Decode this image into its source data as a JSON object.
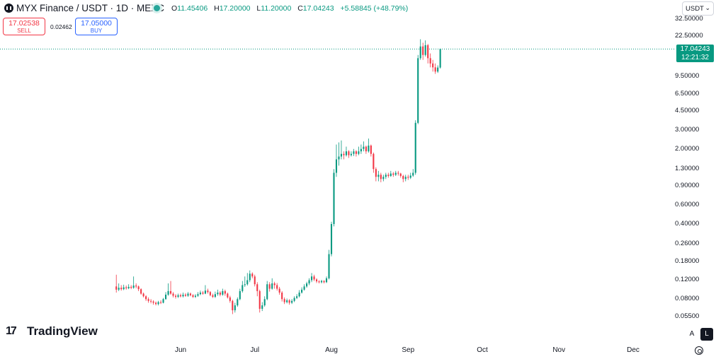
{
  "header": {
    "symbol_title": "MYX Finance / USDT · 1D · MEXC",
    "ohlc": {
      "o_key": "O",
      "o_val": "11.45406",
      "h_key": "H",
      "h_val": "17.20000",
      "l_key": "L",
      "l_val": "11.20000",
      "c_key": "C",
      "c_val": "17.04243",
      "change": "+5.58845 (+48.79%)"
    }
  },
  "trade": {
    "sell_price": "17.02538",
    "sell_label": "SELL",
    "spread": "0.02462",
    "buy_price": "17.05000",
    "buy_label": "BUY"
  },
  "currency": {
    "label": "USDT",
    "chevron": "⌄"
  },
  "price_tag": {
    "price": "17.04243",
    "countdown": "12:21:32"
  },
  "branding": {
    "logo_text": "TradingView"
  },
  "controls": {
    "auto_label": "A",
    "log_label": "L"
  },
  "colors": {
    "up": "#089981",
    "down": "#f23645",
    "tag": "#089981"
  },
  "chart_data": {
    "type": "candlestick",
    "scale": "log",
    "y_ticks": [
      {
        "value": 32.5,
        "label": "32.50000"
      },
      {
        "value": 22.5,
        "label": "22.50000"
      },
      {
        "value": 9.5,
        "label": "9.50000"
      },
      {
        "value": 6.5,
        "label": "6.50000"
      },
      {
        "value": 4.5,
        "label": "4.50000"
      },
      {
        "value": 3.0,
        "label": "3.00000"
      },
      {
        "value": 2.0,
        "label": "2.00000"
      },
      {
        "value": 1.3,
        "label": "1.30000"
      },
      {
        "value": 0.9,
        "label": "0.90000"
      },
      {
        "value": 0.6,
        "label": "0.60000"
      },
      {
        "value": 0.4,
        "label": "0.40000"
      },
      {
        "value": 0.26,
        "label": "0.26000"
      },
      {
        "value": 0.18,
        "label": "0.18000"
      },
      {
        "value": 0.12,
        "label": "0.12000"
      },
      {
        "value": 0.08,
        "label": "0.08000"
      },
      {
        "value": 0.055,
        "label": "0.05500"
      }
    ],
    "x_ticks": [
      {
        "date": "2025-06-01",
        "label": "Jun"
      },
      {
        "date": "2025-07-01",
        "label": "Jul"
      },
      {
        "date": "2025-08-01",
        "label": "Aug"
      },
      {
        "date": "2025-09-01",
        "label": "Sep"
      },
      {
        "date": "2025-10-01",
        "label": "Oct"
      },
      {
        "date": "2025-11-01",
        "label": "Nov"
      },
      {
        "date": "2025-12-01",
        "label": "Dec"
      }
    ],
    "last_price": 17.04243,
    "candles": [
      [
        "2025-05-06",
        0.105,
        0.098,
        0.135,
        0.092
      ],
      [
        "2025-05-07",
        0.098,
        0.102,
        0.112,
        0.095
      ],
      [
        "2025-05-08",
        0.102,
        0.099,
        0.108,
        0.096
      ],
      [
        "2025-05-09",
        0.099,
        0.103,
        0.109,
        0.097
      ],
      [
        "2025-05-10",
        0.103,
        0.101,
        0.107,
        0.098
      ],
      [
        "2025-05-11",
        0.101,
        0.104,
        0.11,
        0.099
      ],
      [
        "2025-05-12",
        0.104,
        0.102,
        0.108,
        0.099
      ],
      [
        "2025-05-13",
        0.102,
        0.107,
        0.13,
        0.1
      ],
      [
        "2025-05-14",
        0.107,
        0.105,
        0.112,
        0.101
      ],
      [
        "2025-05-15",
        0.105,
        0.099,
        0.107,
        0.095
      ],
      [
        "2025-05-16",
        0.099,
        0.09,
        0.101,
        0.088
      ],
      [
        "2025-05-17",
        0.09,
        0.085,
        0.092,
        0.083
      ],
      [
        "2025-05-18",
        0.085,
        0.08,
        0.087,
        0.077
      ],
      [
        "2025-05-19",
        0.08,
        0.077,
        0.083,
        0.074
      ],
      [
        "2025-05-20",
        0.077,
        0.076,
        0.08,
        0.073
      ],
      [
        "2025-05-21",
        0.076,
        0.074,
        0.078,
        0.071
      ],
      [
        "2025-05-22",
        0.074,
        0.072,
        0.076,
        0.07
      ],
      [
        "2025-05-23",
        0.072,
        0.075,
        0.077,
        0.07
      ],
      [
        "2025-05-24",
        0.075,
        0.074,
        0.078,
        0.072
      ],
      [
        "2025-05-25",
        0.074,
        0.08,
        0.082,
        0.073
      ],
      [
        "2025-05-26",
        0.08,
        0.088,
        0.093,
        0.079
      ],
      [
        "2025-05-27",
        0.088,
        0.095,
        0.112,
        0.086
      ],
      [
        "2025-05-28",
        0.095,
        0.09,
        0.118,
        0.088
      ],
      [
        "2025-05-29",
        0.09,
        0.086,
        0.093,
        0.083
      ],
      [
        "2025-05-30",
        0.086,
        0.084,
        0.089,
        0.081
      ],
      [
        "2025-05-31",
        0.084,
        0.087,
        0.09,
        0.082
      ],
      [
        "2025-06-01",
        0.087,
        0.085,
        0.09,
        0.083
      ],
      [
        "2025-06-02",
        0.085,
        0.088,
        0.092,
        0.083
      ],
      [
        "2025-06-03",
        0.088,
        0.086,
        0.091,
        0.084
      ],
      [
        "2025-06-04",
        0.086,
        0.09,
        0.093,
        0.084
      ],
      [
        "2025-06-05",
        0.09,
        0.087,
        0.092,
        0.085
      ],
      [
        "2025-06-06",
        0.087,
        0.084,
        0.089,
        0.082
      ],
      [
        "2025-06-07",
        0.084,
        0.086,
        0.089,
        0.082
      ],
      [
        "2025-06-08",
        0.086,
        0.089,
        0.093,
        0.084
      ],
      [
        "2025-06-09",
        0.089,
        0.092,
        0.096,
        0.087
      ],
      [
        "2025-06-10",
        0.092,
        0.09,
        0.095,
        0.088
      ],
      [
        "2025-06-11",
        0.09,
        0.096,
        0.108,
        0.089
      ],
      [
        "2025-06-12",
        0.096,
        0.093,
        0.1,
        0.09
      ],
      [
        "2025-06-13",
        0.093,
        0.087,
        0.095,
        0.085
      ],
      [
        "2025-06-14",
        0.087,
        0.084,
        0.09,
        0.082
      ],
      [
        "2025-06-15",
        0.084,
        0.089,
        0.094,
        0.082
      ],
      [
        "2025-06-16",
        0.089,
        0.092,
        0.098,
        0.086
      ],
      [
        "2025-06-17",
        0.092,
        0.088,
        0.095,
        0.085
      ],
      [
        "2025-06-18",
        0.088,
        0.095,
        0.1,
        0.086
      ],
      [
        "2025-06-19",
        0.095,
        0.09,
        0.098,
        0.086
      ],
      [
        "2025-06-20",
        0.09,
        0.083,
        0.092,
        0.081
      ],
      [
        "2025-06-21",
        0.083,
        0.077,
        0.086,
        0.074
      ],
      [
        "2025-06-22",
        0.077,
        0.063,
        0.079,
        0.058
      ],
      [
        "2025-06-23",
        0.063,
        0.07,
        0.074,
        0.06
      ],
      [
        "2025-06-24",
        0.07,
        0.08,
        0.083,
        0.068
      ],
      [
        "2025-06-25",
        0.08,
        0.095,
        0.1,
        0.078
      ],
      [
        "2025-06-26",
        0.095,
        0.108,
        0.118,
        0.092
      ],
      [
        "2025-06-27",
        0.108,
        0.11,
        0.13,
        0.104
      ],
      [
        "2025-06-28",
        0.11,
        0.12,
        0.14,
        0.107
      ],
      [
        "2025-06-29",
        0.12,
        0.138,
        0.148,
        0.115
      ],
      [
        "2025-06-30",
        0.138,
        0.13,
        0.142,
        0.125
      ],
      [
        "2025-07-01",
        0.13,
        0.11,
        0.135,
        0.105
      ],
      [
        "2025-07-02",
        0.11,
        0.095,
        0.115,
        0.085
      ],
      [
        "2025-07-03",
        0.095,
        0.065,
        0.098,
        0.06
      ],
      [
        "2025-07-04",
        0.065,
        0.07,
        0.075,
        0.062
      ],
      [
        "2025-07-05",
        0.07,
        0.08,
        0.085,
        0.068
      ],
      [
        "2025-07-06",
        0.08,
        0.11,
        0.118,
        0.078
      ],
      [
        "2025-07-07",
        0.11,
        0.1,
        0.115,
        0.094
      ],
      [
        "2025-07-08",
        0.1,
        0.112,
        0.125,
        0.098
      ],
      [
        "2025-07-09",
        0.112,
        0.108,
        0.116,
        0.1
      ],
      [
        "2025-07-10",
        0.108,
        0.1,
        0.113,
        0.096
      ],
      [
        "2025-07-11",
        0.1,
        0.092,
        0.104,
        0.088
      ],
      [
        "2025-07-12",
        0.092,
        0.08,
        0.095,
        0.076
      ],
      [
        "2025-07-13",
        0.08,
        0.075,
        0.083,
        0.072
      ],
      [
        "2025-07-14",
        0.075,
        0.078,
        0.081,
        0.073
      ],
      [
        "2025-07-15",
        0.078,
        0.074,
        0.08,
        0.071
      ],
      [
        "2025-07-16",
        0.074,
        0.077,
        0.08,
        0.072
      ],
      [
        "2025-07-17",
        0.077,
        0.082,
        0.085,
        0.075
      ],
      [
        "2025-07-18",
        0.082,
        0.085,
        0.089,
        0.08
      ],
      [
        "2025-07-19",
        0.085,
        0.092,
        0.097,
        0.083
      ],
      [
        "2025-07-20",
        0.092,
        0.098,
        0.103,
        0.09
      ],
      [
        "2025-07-21",
        0.098,
        0.105,
        0.11,
        0.096
      ],
      [
        "2025-07-22",
        0.105,
        0.112,
        0.116,
        0.102
      ],
      [
        "2025-07-23",
        0.112,
        0.12,
        0.125,
        0.108
      ],
      [
        "2025-07-24",
        0.12,
        0.13,
        0.14,
        0.115
      ],
      [
        "2025-07-25",
        0.13,
        0.122,
        0.135,
        0.118
      ],
      [
        "2025-07-26",
        0.122,
        0.117,
        0.125,
        0.113
      ],
      [
        "2025-07-27",
        0.117,
        0.115,
        0.12,
        0.112
      ],
      [
        "2025-07-28",
        0.115,
        0.118,
        0.121,
        0.112
      ],
      [
        "2025-07-29",
        0.118,
        0.115,
        0.12,
        0.112
      ],
      [
        "2025-07-30",
        0.115,
        0.125,
        0.13,
        0.113
      ],
      [
        "2025-07-31",
        0.125,
        0.21,
        0.23,
        0.122
      ],
      [
        "2025-08-01",
        0.21,
        0.4,
        0.42,
        0.2
      ],
      [
        "2025-08-02",
        0.4,
        1.2,
        1.3,
        0.38
      ],
      [
        "2025-08-03",
        1.2,
        1.6,
        2.2,
        1.1
      ],
      [
        "2025-08-04",
        1.6,
        1.7,
        2.3,
        1.4
      ],
      [
        "2025-08-05",
        1.7,
        1.8,
        2.4,
        1.6
      ],
      [
        "2025-08-06",
        1.8,
        1.75,
        1.9,
        1.6
      ],
      [
        "2025-08-07",
        1.75,
        1.9,
        2.1,
        1.7
      ],
      [
        "2025-08-08",
        1.9,
        1.75,
        1.95,
        1.65
      ],
      [
        "2025-08-09",
        1.75,
        1.8,
        1.9,
        1.7
      ],
      [
        "2025-08-10",
        1.8,
        1.9,
        2.0,
        1.72
      ],
      [
        "2025-08-11",
        1.9,
        1.8,
        1.95,
        1.7
      ],
      [
        "2025-08-12",
        1.8,
        1.9,
        2.1,
        1.75
      ],
      [
        "2025-08-13",
        1.9,
        2.0,
        2.2,
        1.8
      ],
      [
        "2025-08-14",
        2.0,
        2.1,
        2.35,
        1.9
      ],
      [
        "2025-08-15",
        2.1,
        1.9,
        2.15,
        1.8
      ],
      [
        "2025-08-16",
        1.9,
        2.15,
        2.5,
        1.85
      ],
      [
        "2025-08-17",
        2.15,
        1.8,
        2.2,
        1.7
      ],
      [
        "2025-08-18",
        1.8,
        1.3,
        1.85,
        1.2
      ],
      [
        "2025-08-19",
        1.3,
        1.1,
        1.35,
        1.0
      ],
      [
        "2025-08-20",
        1.1,
        1.15,
        1.25,
        1.0
      ],
      [
        "2025-08-21",
        1.15,
        1.05,
        1.2,
        0.98
      ],
      [
        "2025-08-22",
        1.05,
        1.1,
        1.15,
        1.0
      ],
      [
        "2025-08-23",
        1.1,
        1.15,
        1.2,
        1.05
      ],
      [
        "2025-08-24",
        1.15,
        1.12,
        1.2,
        1.08
      ],
      [
        "2025-08-25",
        1.12,
        1.18,
        1.25,
        1.1
      ],
      [
        "2025-08-26",
        1.18,
        1.15,
        1.22,
        1.1
      ],
      [
        "2025-08-27",
        1.15,
        1.2,
        1.25,
        1.12
      ],
      [
        "2025-08-28",
        1.2,
        1.18,
        1.25,
        1.13
      ],
      [
        "2025-08-29",
        1.18,
        1.12,
        1.2,
        1.08
      ],
      [
        "2025-08-30",
        1.12,
        1.05,
        1.15,
        0.98
      ],
      [
        "2025-08-31",
        1.05,
        1.1,
        1.15,
        1.0
      ],
      [
        "2025-09-01",
        1.1,
        1.08,
        1.15,
        1.03
      ],
      [
        "2025-09-02",
        1.08,
        1.13,
        1.2,
        1.05
      ],
      [
        "2025-09-03",
        1.13,
        1.2,
        1.3,
        1.1
      ],
      [
        "2025-09-04",
        1.2,
        3.5,
        3.7,
        1.15
      ],
      [
        "2025-09-05",
        3.5,
        14.0,
        15.0,
        3.4
      ],
      [
        "2025-09-06",
        14.0,
        18.0,
        21.0,
        13.5
      ],
      [
        "2025-09-07",
        18.0,
        15.0,
        19.5,
        13.5
      ],
      [
        "2025-09-08",
        15.0,
        18.5,
        20.5,
        14.5
      ],
      [
        "2025-09-09",
        18.5,
        14.0,
        19.0,
        12.5
      ],
      [
        "2025-09-10",
        14.0,
        12.5,
        15.5,
        11.5
      ],
      [
        "2025-09-11",
        12.5,
        11.5,
        13.5,
        10.5
      ],
      [
        "2025-09-12",
        11.5,
        10.5,
        12.5,
        10.0
      ],
      [
        "2025-09-13",
        10.5,
        11.45,
        12.0,
        10.2
      ],
      [
        "2025-09-14",
        11.45406,
        17.04243,
        17.2,
        11.2
      ]
    ]
  }
}
